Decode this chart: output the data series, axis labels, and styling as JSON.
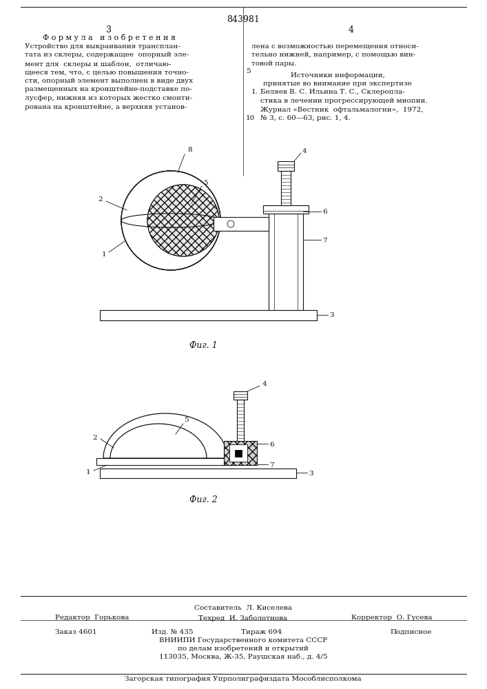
{
  "page_color": "#ffffff",
  "patent_number": "843981",
  "col_left": "3",
  "col_right": "4",
  "section_title": "Ф о р м у л а   и з о б р е т е н и я",
  "fig1_caption": "Фиг. 1",
  "fig2_caption": "Фиг. 2",
  "footer_col1_label": "Редактор",
  "footer_col1_name": "Горькова",
  "footer_col2_label_top": "Составитель",
  "footer_col2_name_top": "Л. Киселева",
  "footer_col2_label_bot": "Техред",
  "footer_col2_name_bot": "И. Заболотнова",
  "footer_col3_label": "Корректор",
  "footer_col3_name": "О. Гусева",
  "footer_order": "Заказ 4601",
  "footer_issue": "Изд. № 435",
  "footer_copies": "Тираж 694",
  "footer_price": "Подписное",
  "footer_org_line1": "ВНИИПИ Государственного комитета СССР",
  "footer_org_line2": "по делам изобретений и открытий",
  "footer_org_line3": "113035, Москва, Ж-35, Раушская наб., д. 4/5",
  "footer_printer": "Загорская типография Упрполиграфиздата Мособлисполкома",
  "text_color": "#111111",
  "line_color": "#111111"
}
